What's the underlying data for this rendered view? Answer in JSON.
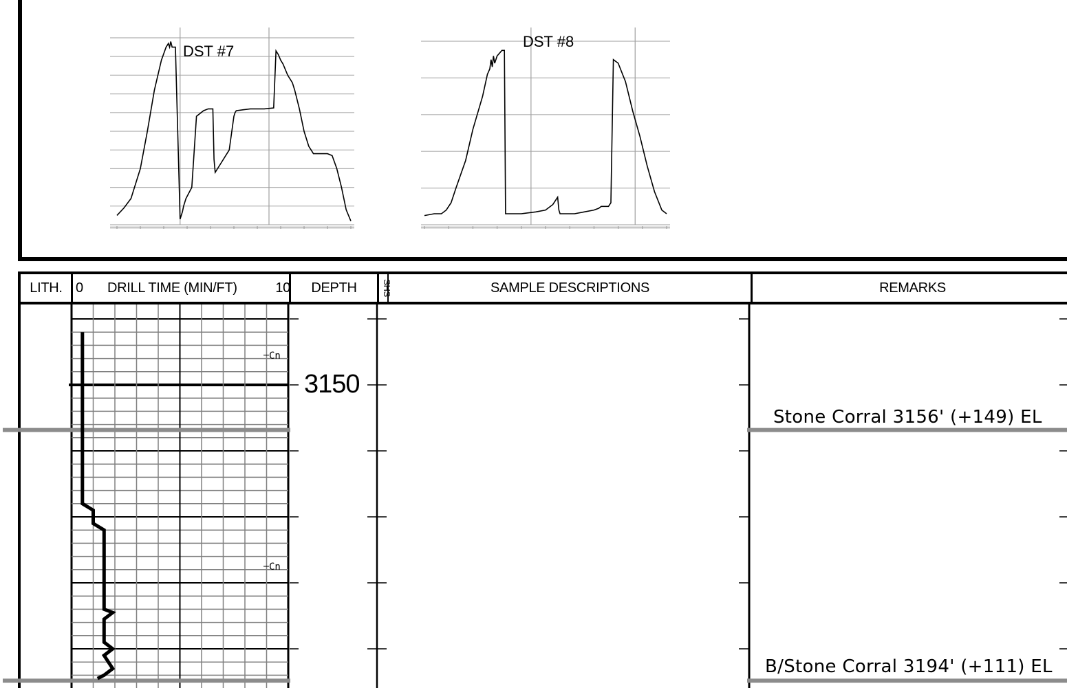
{
  "chart_data": [
    {
      "type": "line",
      "title": "DST #7",
      "series": [
        {
          "x": [
            0,
            3,
            6,
            10,
            13,
            16,
            19,
            21,
            22,
            22.5,
            23,
            23.6,
            25,
            27,
            28,
            28.5,
            29,
            29.5,
            32,
            34,
            37,
            39,
            41,
            41.5,
            42,
            44,
            48,
            50,
            50.5,
            51,
            54,
            57,
            60,
            63,
            67,
            68,
            69,
            70,
            71,
            73,
            75,
            76,
            78,
            80,
            82,
            84,
            85,
            86,
            87,
            88,
            90,
            92,
            94,
            96,
            98,
            100
          ],
          "y": [
            5,
            9,
            14,
            30,
            50,
            72,
            88,
            95,
            97,
            95,
            98,
            95,
            95,
            3,
            7,
            10,
            12,
            14,
            20,
            58,
            61,
            62,
            62,
            35,
            28,
            32,
            40,
            58,
            60,
            61,
            61.5,
            62,
            62,
            62,
            62.5,
            93,
            91,
            88,
            86,
            80,
            76,
            72,
            62,
            50,
            42,
            38,
            38,
            38,
            38,
            38,
            38,
            37,
            30,
            20,
            8,
            2
          ]
        }
      ]
    },
    {
      "type": "line",
      "title": "DST #8",
      "series": [
        {
          "x": [
            0,
            4,
            7,
            9,
            11,
            13,
            17,
            20,
            24,
            26,
            27,
            27.5,
            28,
            28.5,
            29,
            30,
            32,
            33,
            33.5,
            34,
            34.5,
            40,
            46,
            50,
            53,
            55,
            55.5,
            56,
            58,
            62,
            66,
            70,
            72,
            73,
            74,
            75,
            76,
            77,
            78,
            80,
            83,
            86,
            89,
            92,
            95,
            98,
            100
          ],
          "y": [
            5,
            6,
            6,
            8,
            12,
            20,
            35,
            52,
            70,
            82,
            85,
            90,
            86,
            92,
            88,
            92,
            95,
            95,
            6,
            6,
            6,
            6,
            7,
            8,
            11,
            15,
            8,
            6,
            6,
            6,
            7,
            8,
            9,
            10,
            10,
            10,
            10,
            12,
            90,
            88,
            78,
            62,
            48,
            32,
            18,
            8,
            6
          ]
        }
      ]
    },
    {
      "type": "line",
      "title": "DRILL TIME (MIN/FT)",
      "xlabel": "DRILL TIME (MIN/FT)",
      "ylabel": "DEPTH",
      "xlim": [
        0,
        10
      ],
      "ylim": [
        3200,
        3140
      ],
      "grid": true,
      "series": [
        {
          "x": [
            0.5,
            0.5,
            0.5,
            0.5,
            0.5,
            0.5,
            1.0,
            1.0,
            1.5,
            1.5,
            1.5,
            1.9,
            1.5,
            1.5,
            1.9,
            1.5,
            1.9,
            1.5,
            1.2
          ],
          "y": [
            3142,
            3150,
            3156,
            3162,
            3167,
            3168,
            3169,
            3171,
            3172,
            3175,
            3184,
            3184.5,
            3185.5,
            3189,
            3190,
            3191,
            3193,
            3194,
            3194.5
          ]
        }
      ],
      "depth_labels": [
        "3150"
      ],
      "minor_labels": [
        "Cn",
        "Cn"
      ]
    }
  ],
  "header": {
    "lith": "LITH.",
    "drill_time_min": "0",
    "drill_time_title": "DRILL TIME (MIN/FT)",
    "drill_time_max": "10",
    "depth": "DEPTH",
    "shows": "SHS",
    "sample_descriptions": "SAMPLE DESCRIPTIONS",
    "remarks": "REMARKS"
  },
  "remarks": {
    "stone_corral": "Stone Corral  3156' (+149) EL",
    "b_stone_corral": "B/Stone Corral  3194' (+111) EL"
  },
  "colors": {
    "formation_line": "#8c8c8c",
    "grid": "#808080",
    "ink": "#000000"
  }
}
